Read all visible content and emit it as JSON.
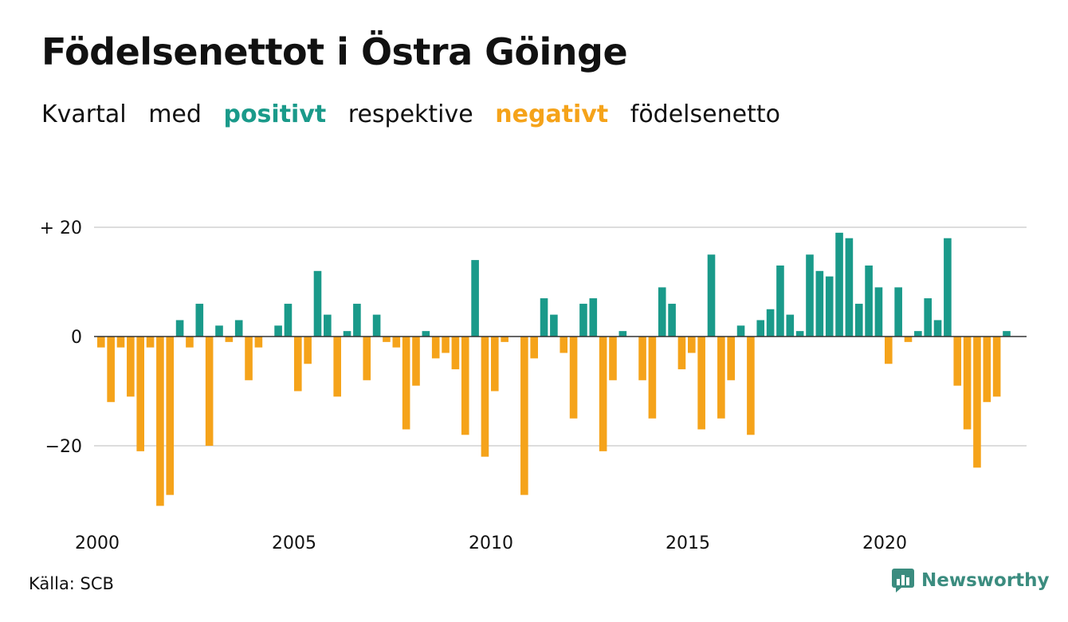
{
  "title": "Födelsenettot i Östra Göinge",
  "subtitle": {
    "w1": "Kvartal",
    "w2": "med",
    "positive": "positivt",
    "w3": "respektive",
    "negative": "negativt",
    "w4": "födelsenetto"
  },
  "source": "Källa: SCB",
  "brand": {
    "name": "Newsworthy",
    "logo_icon": "newsworthy-logo-icon"
  },
  "colors": {
    "positive": "#1a9a8a",
    "negative": "#f5a31a",
    "grid": "#dddddd",
    "zero_line": "#333333",
    "brand": "#3b8c7f"
  },
  "chart_data": {
    "type": "bar",
    "x_start": "2000 Q1",
    "values": [
      -2,
      -12,
      -2,
      -11,
      -21,
      -2,
      -31,
      -29,
      3,
      -2,
      6,
      -20,
      2,
      -1,
      3,
      -8,
      -2,
      0,
      2,
      6,
      -10,
      -5,
      12,
      4,
      -11,
      1,
      6,
      -8,
      4,
      -1,
      -2,
      -17,
      -9,
      1,
      -4,
      -3,
      -6,
      -18,
      14,
      -22,
      -10,
      -1,
      0,
      -29,
      -4,
      7,
      4,
      -3,
      -15,
      6,
      7,
      -21,
      -8,
      1,
      0,
      -8,
      -15,
      9,
      6,
      -6,
      -3,
      -17,
      15,
      -15,
      -8,
      2,
      -18,
      3,
      5,
      13,
      4,
      1,
      15,
      12,
      11,
      19,
      18,
      6,
      13,
      9,
      -5,
      9,
      -1,
      1,
      7,
      3,
      18,
      -9,
      -17,
      -24,
      -12,
      -11,
      1
    ],
    "yticks": [
      20,
      0,
      -20
    ],
    "ytick_labels": [
      "+ 20",
      "0",
      "−20"
    ],
    "ylim": [
      -33,
      20
    ],
    "xticks": [
      "2000",
      "2005",
      "2010",
      "2015",
      "2020"
    ],
    "grid": true
  }
}
